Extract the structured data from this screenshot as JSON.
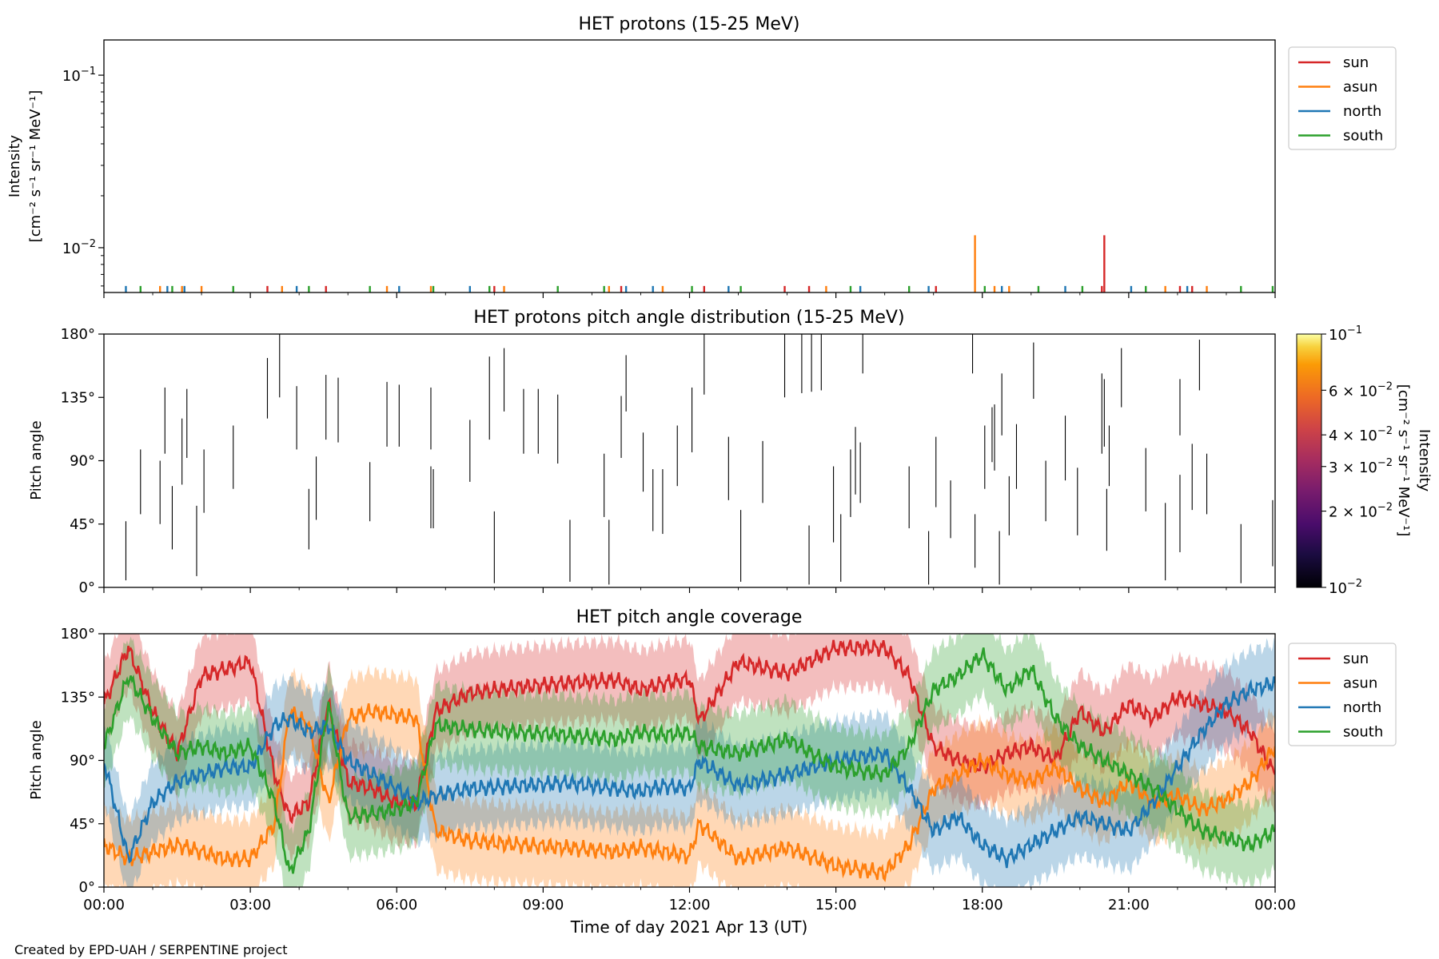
{
  "credit": "Created by EPD-UAH / SERPENTINE project",
  "colors": {
    "sun": "#d62728",
    "asun": "#ff7f0e",
    "north": "#1f77b4",
    "south": "#2ca02c"
  },
  "chart_data": [
    {
      "type": "line",
      "title": "HET protons (15-25 MeV)",
      "ylabel_line1": "Intensity",
      "ylabel_line2": "[cm⁻² s⁻¹ sr⁻¹ MeV⁻¹]",
      "yscale": "log",
      "ylim": [
        0.0055,
        0.16
      ],
      "yticks": [
        {
          "value": 0.1,
          "base": "10",
          "exp": "−1"
        },
        {
          "value": 0.01,
          "base": "10",
          "exp": "−2"
        }
      ],
      "xlim": [
        0,
        24
      ],
      "legend_position": "outside-right",
      "series": [
        {
          "name": "sun",
          "color": "#d62728",
          "spikes": [
            [
              3.35,
              0.006
            ],
            [
              4.55,
              0.006
            ],
            [
              8.0,
              0.006
            ],
            [
              10.6,
              0.006
            ],
            [
              12.3,
              0.006
            ],
            [
              13.95,
              0.006
            ],
            [
              14.45,
              0.006
            ],
            [
              17.05,
              0.006
            ],
            [
              20.5,
              0.0118
            ],
            [
              20.45,
              0.006
            ],
            [
              22.3,
              0.006
            ],
            [
              22.05,
              0.006
            ]
          ]
        },
        {
          "name": "asun",
          "color": "#ff7f0e",
          "spikes": [
            [
              1.15,
              0.006
            ],
            [
              1.6,
              0.006
            ],
            [
              2.0,
              0.006
            ],
            [
              3.65,
              0.006
            ],
            [
              5.8,
              0.006
            ],
            [
              6.7,
              0.006
            ],
            [
              8.2,
              0.006
            ],
            [
              10.35,
              0.006
            ],
            [
              11.45,
              0.006
            ],
            [
              14.8,
              0.006
            ],
            [
              17.85,
              0.0118
            ],
            [
              18.25,
              0.006
            ],
            [
              18.55,
              0.006
            ],
            [
              21.75,
              0.006
            ],
            [
              22.6,
              0.006
            ]
          ]
        },
        {
          "name": "north",
          "color": "#1f77b4",
          "spikes": [
            [
              0.45,
              0.006
            ],
            [
              1.3,
              0.006
            ],
            [
              1.65,
              0.006
            ],
            [
              3.95,
              0.006
            ],
            [
              6.05,
              0.006
            ],
            [
              7.5,
              0.006
            ],
            [
              10.7,
              0.006
            ],
            [
              11.25,
              0.006
            ],
            [
              12.8,
              0.006
            ],
            [
              15.5,
              0.006
            ],
            [
              16.9,
              0.006
            ],
            [
              18.4,
              0.006
            ],
            [
              19.7,
              0.006
            ],
            [
              21.05,
              0.006
            ],
            [
              22.2,
              0.006
            ]
          ]
        },
        {
          "name": "south",
          "color": "#2ca02c",
          "spikes": [
            [
              0.75,
              0.006
            ],
            [
              1.4,
              0.006
            ],
            [
              2.65,
              0.006
            ],
            [
              4.2,
              0.006
            ],
            [
              5.45,
              0.006
            ],
            [
              6.75,
              0.006
            ],
            [
              7.9,
              0.006
            ],
            [
              9.3,
              0.006
            ],
            [
              10.25,
              0.006
            ],
            [
              12.05,
              0.006
            ],
            [
              13.05,
              0.006
            ],
            [
              15.3,
              0.006
            ],
            [
              16.5,
              0.006
            ],
            [
              18.05,
              0.006
            ],
            [
              19.15,
              0.006
            ],
            [
              20.05,
              0.006
            ],
            [
              21.35,
              0.006
            ],
            [
              23.3,
              0.006
            ],
            [
              23.95,
              0.006
            ]
          ]
        }
      ]
    },
    {
      "type": "heatmap",
      "title": "HET protons pitch angle distribution (15-25 MeV)",
      "ylabel": "Pitch angle",
      "ylim": [
        0,
        180
      ],
      "yticks": [
        "0°",
        "45°",
        "90°",
        "135°",
        "180°"
      ],
      "xlim": [
        0,
        24
      ],
      "colorbar": {
        "label_line1": "Intensity",
        "label_line2": "[cm⁻² s⁻¹ sr⁻¹ MeV⁻¹]",
        "scale": "log",
        "range": [
          0.01,
          0.1
        ],
        "colormap": "inferno",
        "ticks": [
          {
            "value": 0.1,
            "mant": "",
            "exp": "−1"
          },
          {
            "value": 0.06,
            "mant": "6",
            "exp": "−2"
          },
          {
            "value": 0.04,
            "mant": "4",
            "exp": "−2"
          },
          {
            "value": 0.03,
            "mant": "3",
            "exp": "−2"
          },
          {
            "value": 0.02,
            "mant": "2",
            "exp": "−2"
          },
          {
            "value": 0.01,
            "mant": "",
            "exp": "−2"
          }
        ]
      },
      "segments": [
        [
          0.45,
          5,
          47
        ],
        [
          0.75,
          52,
          98
        ],
        [
          1.15,
          45,
          90
        ],
        [
          1.25,
          95,
          142
        ],
        [
          1.4,
          27,
          72
        ],
        [
          1.6,
          73,
          120
        ],
        [
          1.7,
          92,
          141
        ],
        [
          1.9,
          8,
          58
        ],
        [
          2.05,
          53,
          98
        ],
        [
          2.65,
          70,
          115
        ],
        [
          3.35,
          120,
          163
        ],
        [
          3.6,
          135,
          180
        ],
        [
          3.95,
          98,
          143
        ],
        [
          4.2,
          27,
          70
        ],
        [
          4.35,
          48,
          93
        ],
        [
          4.55,
          105,
          151
        ],
        [
          4.8,
          103,
          149
        ],
        [
          5.45,
          47,
          89
        ],
        [
          5.8,
          100,
          146
        ],
        [
          6.05,
          100,
          144
        ],
        [
          6.7,
          42,
          86
        ],
        [
          6.75,
          42,
          84
        ],
        [
          6.7,
          98,
          142
        ],
        [
          7.5,
          75,
          119
        ],
        [
          7.9,
          105,
          164
        ],
        [
          8.2,
          125,
          170
        ],
        [
          8.0,
          3,
          54
        ],
        [
          8.6,
          95,
          141
        ],
        [
          8.9,
          95,
          141
        ],
        [
          9.3,
          88,
          137
        ],
        [
          9.55,
          4,
          48
        ],
        [
          10.25,
          50,
          95
        ],
        [
          10.35,
          2,
          48
        ],
        [
          10.6,
          92,
          136
        ],
        [
          10.7,
          125,
          165
        ],
        [
          11.05,
          68,
          110
        ],
        [
          11.25,
          40,
          84
        ],
        [
          11.45,
          38,
          84
        ],
        [
          11.75,
          72,
          115
        ],
        [
          12.05,
          96,
          142
        ],
        [
          12.3,
          137,
          180
        ],
        [
          12.8,
          62,
          107
        ],
        [
          13.05,
          4,
          55
        ],
        [
          13.5,
          60,
          104
        ],
        [
          13.95,
          135,
          181
        ],
        [
          14.45,
          2,
          44
        ],
        [
          14.3,
          138,
          181
        ],
        [
          14.7,
          140,
          181
        ],
        [
          14.95,
          32,
          86
        ],
        [
          14.5,
          139,
          181
        ],
        [
          15.3,
          50,
          98
        ],
        [
          15.1,
          4,
          52
        ],
        [
          15.4,
          66,
          114
        ],
        [
          15.55,
          152,
          180
        ],
        [
          15.5,
          60,
          103
        ],
        [
          16.5,
          42,
          86
        ],
        [
          16.9,
          2,
          40
        ],
        [
          17.05,
          57,
          107
        ],
        [
          17.35,
          35,
          76
        ],
        [
          17.8,
          152,
          180
        ],
        [
          17.85,
          14,
          52
        ],
        [
          18.05,
          70,
          115
        ],
        [
          18.2,
          89,
          128
        ],
        [
          18.25,
          83,
          130
        ],
        [
          18.4,
          108,
          152
        ],
        [
          18.55,
          37,
          79
        ],
        [
          18.7,
          70,
          116
        ],
        [
          18.35,
          2,
          40
        ],
        [
          19.05,
          134,
          174
        ],
        [
          19.3,
          47,
          90
        ],
        [
          19.7,
          76,
          122
        ],
        [
          19.95,
          37,
          85
        ],
        [
          20.45,
          95,
          152
        ],
        [
          20.5,
          100,
          148
        ],
        [
          20.6,
          72,
          115
        ],
        [
          20.55,
          26,
          70
        ],
        [
          20.85,
          128,
          170
        ],
        [
          21.35,
          54,
          99
        ],
        [
          21.75,
          5,
          60
        ],
        [
          22.05,
          108,
          148
        ],
        [
          22.3,
          55,
          102
        ],
        [
          22.05,
          25,
          80
        ],
        [
          22.45,
          140,
          176
        ],
        [
          22.6,
          52,
          95
        ],
        [
          23.3,
          3,
          45
        ],
        [
          23.95,
          15,
          62
        ]
      ]
    },
    {
      "type": "line",
      "title": "HET pitch angle coverage",
      "ylabel": "Pitch angle",
      "ylim": [
        0,
        180
      ],
      "yticks": [
        "0°",
        "45°",
        "90°",
        "135°",
        "180°"
      ],
      "xlim": [
        0,
        24
      ],
      "xticks": [
        "00:00",
        "03:00",
        "06:00",
        "09:00",
        "12:00",
        "15:00",
        "18:00",
        "21:00",
        "00:00"
      ],
      "xlabel": "Time of day 2021 Apr 13 (UT)",
      "legend_position": "outside-right",
      "band_halfwidth_deg": 28,
      "series": [
        {
          "name": "sun",
          "color": "#d62728",
          "x": [
            0,
            0.5,
            1.0,
            1.5,
            2.0,
            2.5,
            3.0,
            3.5,
            3.8,
            4.2,
            4.6,
            5.0,
            5.5,
            6.0,
            6.4,
            6.8,
            7.5,
            8.5,
            9.5,
            10.5,
            11.0,
            11.5,
            12.0,
            12.2,
            13.0,
            14.0,
            15.0,
            16.0,
            16.5,
            17.0,
            17.5,
            18.0,
            18.5,
            19.0,
            19.5,
            20.0,
            20.5,
            21.0,
            21.5,
            22.0,
            22.5,
            23.0,
            23.5,
            24.0
          ],
          "y": [
            130,
            170,
            125,
            95,
            150,
            155,
            160,
            80,
            50,
            60,
            130,
            75,
            70,
            60,
            60,
            125,
            138,
            142,
            145,
            147,
            140,
            145,
            148,
            118,
            160,
            152,
            170,
            170,
            150,
            100,
            90,
            85,
            95,
            100,
            90,
            125,
            110,
            130,
            120,
            135,
            130,
            125,
            110,
            80
          ]
        },
        {
          "name": "asun",
          "color": "#ff7f0e",
          "x": [
            0,
            0.5,
            1.0,
            1.5,
            2.0,
            2.5,
            3.0,
            3.5,
            3.8,
            4.2,
            4.6,
            5.0,
            5.5,
            6.0,
            6.4,
            6.8,
            7.5,
            8.5,
            9.5,
            10.5,
            11.0,
            11.5,
            12.0,
            12.2,
            13.0,
            14.0,
            15.0,
            16.0,
            16.5,
            17.0,
            17.5,
            18.0,
            18.5,
            19.0,
            19.5,
            20.0,
            20.5,
            21.0,
            21.5,
            22.0,
            22.5,
            23.0,
            23.5,
            24.0
          ],
          "y": [
            30,
            20,
            25,
            30,
            25,
            20,
            20,
            45,
            125,
            115,
            60,
            120,
            125,
            122,
            120,
            40,
            33,
            30,
            28,
            25,
            28,
            25,
            22,
            45,
            20,
            28,
            15,
            10,
            30,
            70,
            80,
            90,
            80,
            75,
            85,
            70,
            60,
            75,
            60,
            65,
            55,
            62,
            75,
            100
          ]
        },
        {
          "name": "north",
          "color": "#1f77b4",
          "x": [
            0,
            0.5,
            1.0,
            1.5,
            2.0,
            2.5,
            3.0,
            3.5,
            3.8,
            4.2,
            4.6,
            5.0,
            5.5,
            6.0,
            6.4,
            6.8,
            7.5,
            8.5,
            9.5,
            10.5,
            11.0,
            11.5,
            12.0,
            12.2,
            13.0,
            14.0,
            15.0,
            16.0,
            16.5,
            17.0,
            17.5,
            18.0,
            18.5,
            19.0,
            19.5,
            20.0,
            20.5,
            21.0,
            21.5,
            22.0,
            22.5,
            23.0,
            23.5,
            24.0
          ],
          "y": [
            90,
            20,
            60,
            75,
            80,
            85,
            85,
            115,
            120,
            110,
            115,
            90,
            80,
            70,
            60,
            65,
            70,
            72,
            74,
            70,
            68,
            72,
            70,
            90,
            72,
            80,
            90,
            95,
            70,
            40,
            50,
            30,
            20,
            30,
            40,
            50,
            45,
            40,
            60,
            85,
            110,
            130,
            140,
            145
          ]
        },
        {
          "name": "south",
          "color": "#2ca02c",
          "x": [
            0,
            0.5,
            1.0,
            1.5,
            2.0,
            2.5,
            3.0,
            3.5,
            3.8,
            4.2,
            4.6,
            5.0,
            5.5,
            6.0,
            6.4,
            6.8,
            7.5,
            8.5,
            9.5,
            10.5,
            11.0,
            11.5,
            12.0,
            12.2,
            13.0,
            14.0,
            15.0,
            16.0,
            16.5,
            17.0,
            17.5,
            18.0,
            18.5,
            19.0,
            19.5,
            20.0,
            20.5,
            21.0,
            21.5,
            22.0,
            22.5,
            23.0,
            23.5,
            24.0
          ],
          "y": [
            100,
            150,
            120,
            95,
            100,
            95,
            100,
            60,
            10,
            40,
            130,
            50,
            52,
            55,
            60,
            115,
            112,
            110,
            108,
            105,
            110,
            108,
            110,
            100,
            95,
            105,
            85,
            80,
            100,
            140,
            150,
            165,
            140,
            155,
            120,
            100,
            90,
            80,
            70,
            55,
            40,
            35,
            30,
            40
          ]
        }
      ]
    }
  ]
}
